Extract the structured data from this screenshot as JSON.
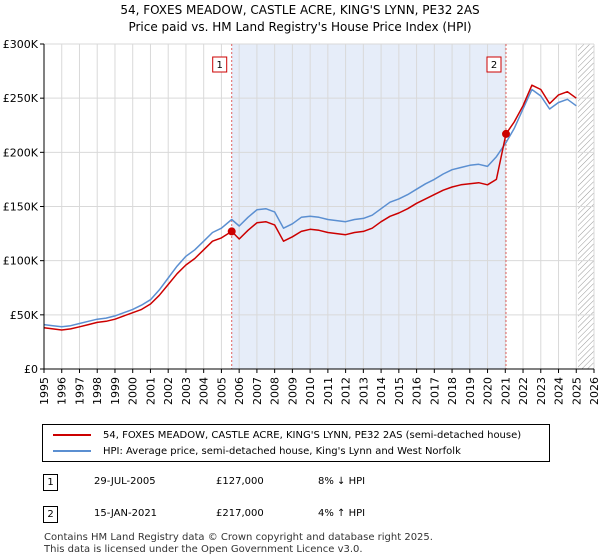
{
  "header": {
    "title": "54, FOXES MEADOW, CASTLE ACRE, KING'S LYNN, PE32 2AS",
    "subtitle": "Price paid vs. HM Land Registry's House Price Index (HPI)"
  },
  "chart_data": {
    "type": "line",
    "title": "54, FOXES MEADOW, CASTLE ACRE, KING'S LYNN, PE32 2AS",
    "subtitle": "Price paid vs. HM Land Registry's House Price Index (HPI)",
    "xlabel": "",
    "ylabel": "",
    "xlim": [
      1995,
      2026
    ],
    "ylim": [
      0,
      300000
    ],
    "x_ticks": [
      "1995",
      "1996",
      "1997",
      "1998",
      "1999",
      "2000",
      "2001",
      "2002",
      "2003",
      "2004",
      "2005",
      "2006",
      "2007",
      "2008",
      "2009",
      "2010",
      "2011",
      "2012",
      "2013",
      "2014",
      "2015",
      "2016",
      "2017",
      "2018",
      "2019",
      "2020",
      "2021",
      "2022",
      "2023",
      "2024",
      "2025",
      "2026"
    ],
    "y_ticks": [
      0,
      50000,
      100000,
      150000,
      200000,
      250000,
      300000
    ],
    "y_tick_labels": [
      "£0",
      "£50K",
      "£100K",
      "£150K",
      "£200K",
      "£250K",
      "£300K"
    ],
    "grid": true,
    "shaded_period": [
      2005.58,
      2021.04
    ],
    "future_hatch_from": 2025.1,
    "series": [
      {
        "name": "54, FOXES MEADOW, CASTLE ACRE, KING'S LYNN, PE32 2AS (semi-detached house)",
        "color": "#cc0000",
        "x": [
          1995.0,
          1995.5,
          1996.0,
          1996.5,
          1997.0,
          1997.5,
          1998.0,
          1998.5,
          1999.0,
          1999.5,
          2000.0,
          2000.5,
          2001.0,
          2001.5,
          2002.0,
          2002.5,
          2003.0,
          2003.5,
          2004.0,
          2004.5,
          2005.0,
          2005.58,
          2006.0,
          2006.5,
          2007.0,
          2007.5,
          2008.0,
          2008.5,
          2009.0,
          2009.5,
          2010.0,
          2010.5,
          2011.0,
          2011.5,
          2012.0,
          2012.5,
          2013.0,
          2013.5,
          2014.0,
          2014.5,
          2015.0,
          2015.5,
          2016.0,
          2016.5,
          2017.0,
          2017.5,
          2018.0,
          2018.5,
          2019.0,
          2019.5,
          2020.0,
          2020.5,
          2021.04,
          2021.5,
          2022.0,
          2022.5,
          2023.0,
          2023.5,
          2024.0,
          2024.5,
          2025.0
        ],
        "y": [
          38000,
          37000,
          36000,
          37000,
          39000,
          41000,
          43000,
          44000,
          46000,
          49000,
          52000,
          55000,
          60000,
          68000,
          78000,
          88000,
          96000,
          102000,
          110000,
          118000,
          121000,
          127000,
          120000,
          128000,
          135000,
          136000,
          133000,
          118000,
          122000,
          127000,
          129000,
          128000,
          126000,
          125000,
          124000,
          126000,
          127000,
          130000,
          136000,
          141000,
          144000,
          148000,
          153000,
          157000,
          161000,
          165000,
          168000,
          170000,
          171000,
          172000,
          170000,
          175000,
          217000,
          228000,
          243000,
          262000,
          258000,
          245000,
          253000,
          256000,
          250000
        ]
      },
      {
        "name": "HPI: Average price, semi-detached house, King's Lynn and West Norfolk",
        "color": "#5b8fd1",
        "x": [
          1995.0,
          1995.5,
          1996.0,
          1996.5,
          1997.0,
          1997.5,
          1998.0,
          1998.5,
          1999.0,
          1999.5,
          2000.0,
          2000.5,
          2001.0,
          2001.5,
          2002.0,
          2002.5,
          2003.0,
          2003.5,
          2004.0,
          2004.5,
          2005.0,
          2005.58,
          2006.0,
          2006.5,
          2007.0,
          2007.5,
          2008.0,
          2008.5,
          2009.0,
          2009.5,
          2010.0,
          2010.5,
          2011.0,
          2011.5,
          2012.0,
          2012.5,
          2013.0,
          2013.5,
          2014.0,
          2014.5,
          2015.0,
          2015.5,
          2016.0,
          2016.5,
          2017.0,
          2017.5,
          2018.0,
          2018.5,
          2019.0,
          2019.5,
          2020.0,
          2020.5,
          2021.04,
          2021.5,
          2022.0,
          2022.5,
          2023.0,
          2023.5,
          2024.0,
          2024.5,
          2025.0
        ],
        "y": [
          41000,
          40000,
          39000,
          40000,
          42000,
          44000,
          46000,
          47000,
          49000,
          52000,
          55000,
          59000,
          64000,
          73000,
          84000,
          95000,
          104000,
          110000,
          118000,
          126000,
          130000,
          138000,
          132000,
          140000,
          147000,
          148000,
          145000,
          130000,
          134000,
          140000,
          141000,
          140000,
          138000,
          137000,
          136000,
          138000,
          139000,
          142000,
          148000,
          154000,
          157000,
          161000,
          166000,
          171000,
          175000,
          180000,
          184000,
          186000,
          188000,
          189000,
          187000,
          196000,
          209000,
          222000,
          240000,
          258000,
          252000,
          240000,
          246000,
          249000,
          243000
        ]
      }
    ],
    "annotations": [
      {
        "label": "1",
        "x": 2005.58,
        "y": 127000
      },
      {
        "label": "2",
        "x": 2021.04,
        "y": 217000
      }
    ]
  },
  "legend": {
    "items": [
      {
        "label": "54, FOXES MEADOW, CASTLE ACRE, KING'S LYNN, PE32 2AS (semi-detached house)",
        "color": "#cc0000"
      },
      {
        "label": "HPI: Average price, semi-detached house, King's Lynn and West Norfolk",
        "color": "#5b8fd1"
      }
    ]
  },
  "transactions": [
    {
      "num": "1",
      "date": "29-JUL-2005",
      "price": "£127,000",
      "hpi": "8% ↓ HPI"
    },
    {
      "num": "2",
      "date": "15-JAN-2021",
      "price": "£217,000",
      "hpi": "4% ↑ HPI"
    }
  ],
  "footer": {
    "line1": "Contains HM Land Registry data © Crown copyright and database right 2025.",
    "line2": "This data is licensed under the Open Government Licence v3.0."
  }
}
